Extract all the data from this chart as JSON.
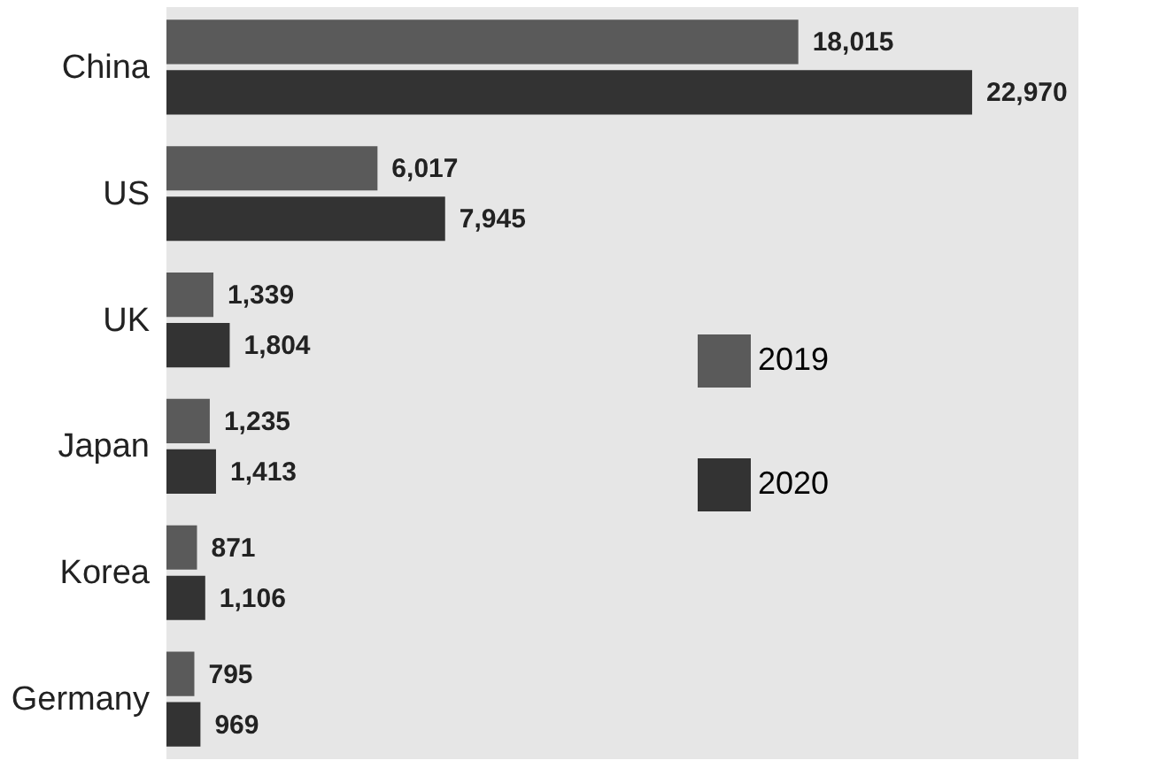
{
  "chart_data": {
    "type": "bar",
    "orientation": "horizontal",
    "categories": [
      "China",
      "US",
      "UK",
      "Japan",
      "Korea",
      "Germany"
    ],
    "series": [
      {
        "name": "2019",
        "color": "#5a5a5a",
        "values": [
          18015,
          6017,
          1339,
          1235,
          871,
          795
        ],
        "value_labels": [
          "18,015",
          "6,017",
          "1,339",
          "1,235",
          "871",
          "795"
        ]
      },
      {
        "name": "2020",
        "color": "#333333",
        "values": [
          22970,
          7945,
          1804,
          1413,
          1106,
          969
        ],
        "value_labels": [
          "22,970",
          "7,945",
          "1,804",
          "1,413",
          "1,106",
          "969"
        ]
      }
    ],
    "xlim": [
      0,
      26000
    ],
    "tick_labels": "y",
    "legend": "bottom right"
  }
}
